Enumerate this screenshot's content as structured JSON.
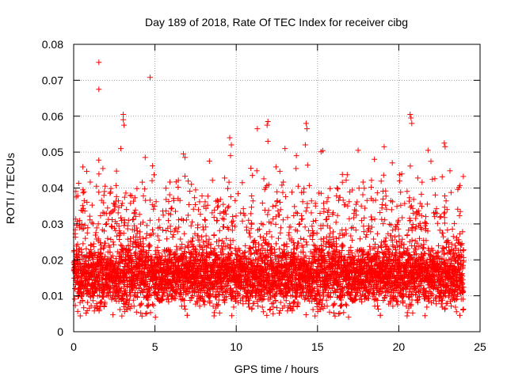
{
  "chart_data": {
    "type": "scatter",
    "title": "Day 189 of 2018, Rate Of TEC Index for receiver cibg",
    "xlabel": "GPS time / hours",
    "ylabel": "ROTI / TECUs",
    "xlim": [
      0,
      25
    ],
    "ylim": [
      0,
      0.08
    ],
    "x_ticks": [
      0,
      5,
      10,
      15,
      20,
      25
    ],
    "x_tick_labels": [
      "0",
      "5",
      "10",
      "15",
      "20",
      "25"
    ],
    "y_ticks": [
      0,
      0.01,
      0.02,
      0.03,
      0.04,
      0.05,
      0.06,
      0.07,
      0.08
    ],
    "y_tick_labels": [
      "0",
      "0.01",
      "0.02",
      "0.03",
      "0.04",
      "0.05",
      "0.06",
      "0.07",
      "0.08"
    ],
    "grid": true,
    "marker": "+",
    "marker_color": "#ff0000",
    "data_range": [
      0,
      24
    ],
    "baseline_typical": 0.016,
    "outliers": [
      {
        "x": 1.55,
        "y": 0.075
      },
      {
        "x": 1.55,
        "y": 0.0675
      },
      {
        "x": 4.7,
        "y": 0.0708
      },
      {
        "x": 3.05,
        "y": 0.0605
      },
      {
        "x": 3.05,
        "y": 0.059
      },
      {
        "x": 3.1,
        "y": 0.0575
      },
      {
        "x": 2.9,
        "y": 0.051
      },
      {
        "x": 9.6,
        "y": 0.054
      },
      {
        "x": 9.7,
        "y": 0.052
      },
      {
        "x": 9.65,
        "y": 0.049
      },
      {
        "x": 11.95,
        "y": 0.0585
      },
      {
        "x": 11.9,
        "y": 0.0575
      },
      {
        "x": 11.95,
        "y": 0.053
      },
      {
        "x": 11.3,
        "y": 0.0565
      },
      {
        "x": 14.3,
        "y": 0.058
      },
      {
        "x": 14.35,
        "y": 0.0565
      },
      {
        "x": 14.25,
        "y": 0.052
      },
      {
        "x": 20.7,
        "y": 0.0605
      },
      {
        "x": 20.75,
        "y": 0.0595
      },
      {
        "x": 20.8,
        "y": 0.058
      },
      {
        "x": 19.1,
        "y": 0.0515
      },
      {
        "x": 22.8,
        "y": 0.0525
      },
      {
        "x": 22.85,
        "y": 0.0515
      },
      {
        "x": 6.75,
        "y": 0.0495
      },
      {
        "x": 6.85,
        "y": 0.0485
      },
      {
        "x": 4.4,
        "y": 0.0485
      },
      {
        "x": 13.0,
        "y": 0.051
      },
      {
        "x": 17.5,
        "y": 0.0505
      },
      {
        "x": 18.5,
        "y": 0.048
      },
      {
        "x": 21.8,
        "y": 0.0505
      },
      {
        "x": 8.35,
        "y": 0.0475
      },
      {
        "x": 10.9,
        "y": 0.0455
      },
      {
        "x": 13.7,
        "y": 0.049
      },
      {
        "x": 19.6,
        "y": 0.047
      },
      {
        "x": 0.15,
        "y": 0.0375
      },
      {
        "x": 1.4,
        "y": 0.0405
      },
      {
        "x": 16.2,
        "y": 0.04
      }
    ]
  }
}
